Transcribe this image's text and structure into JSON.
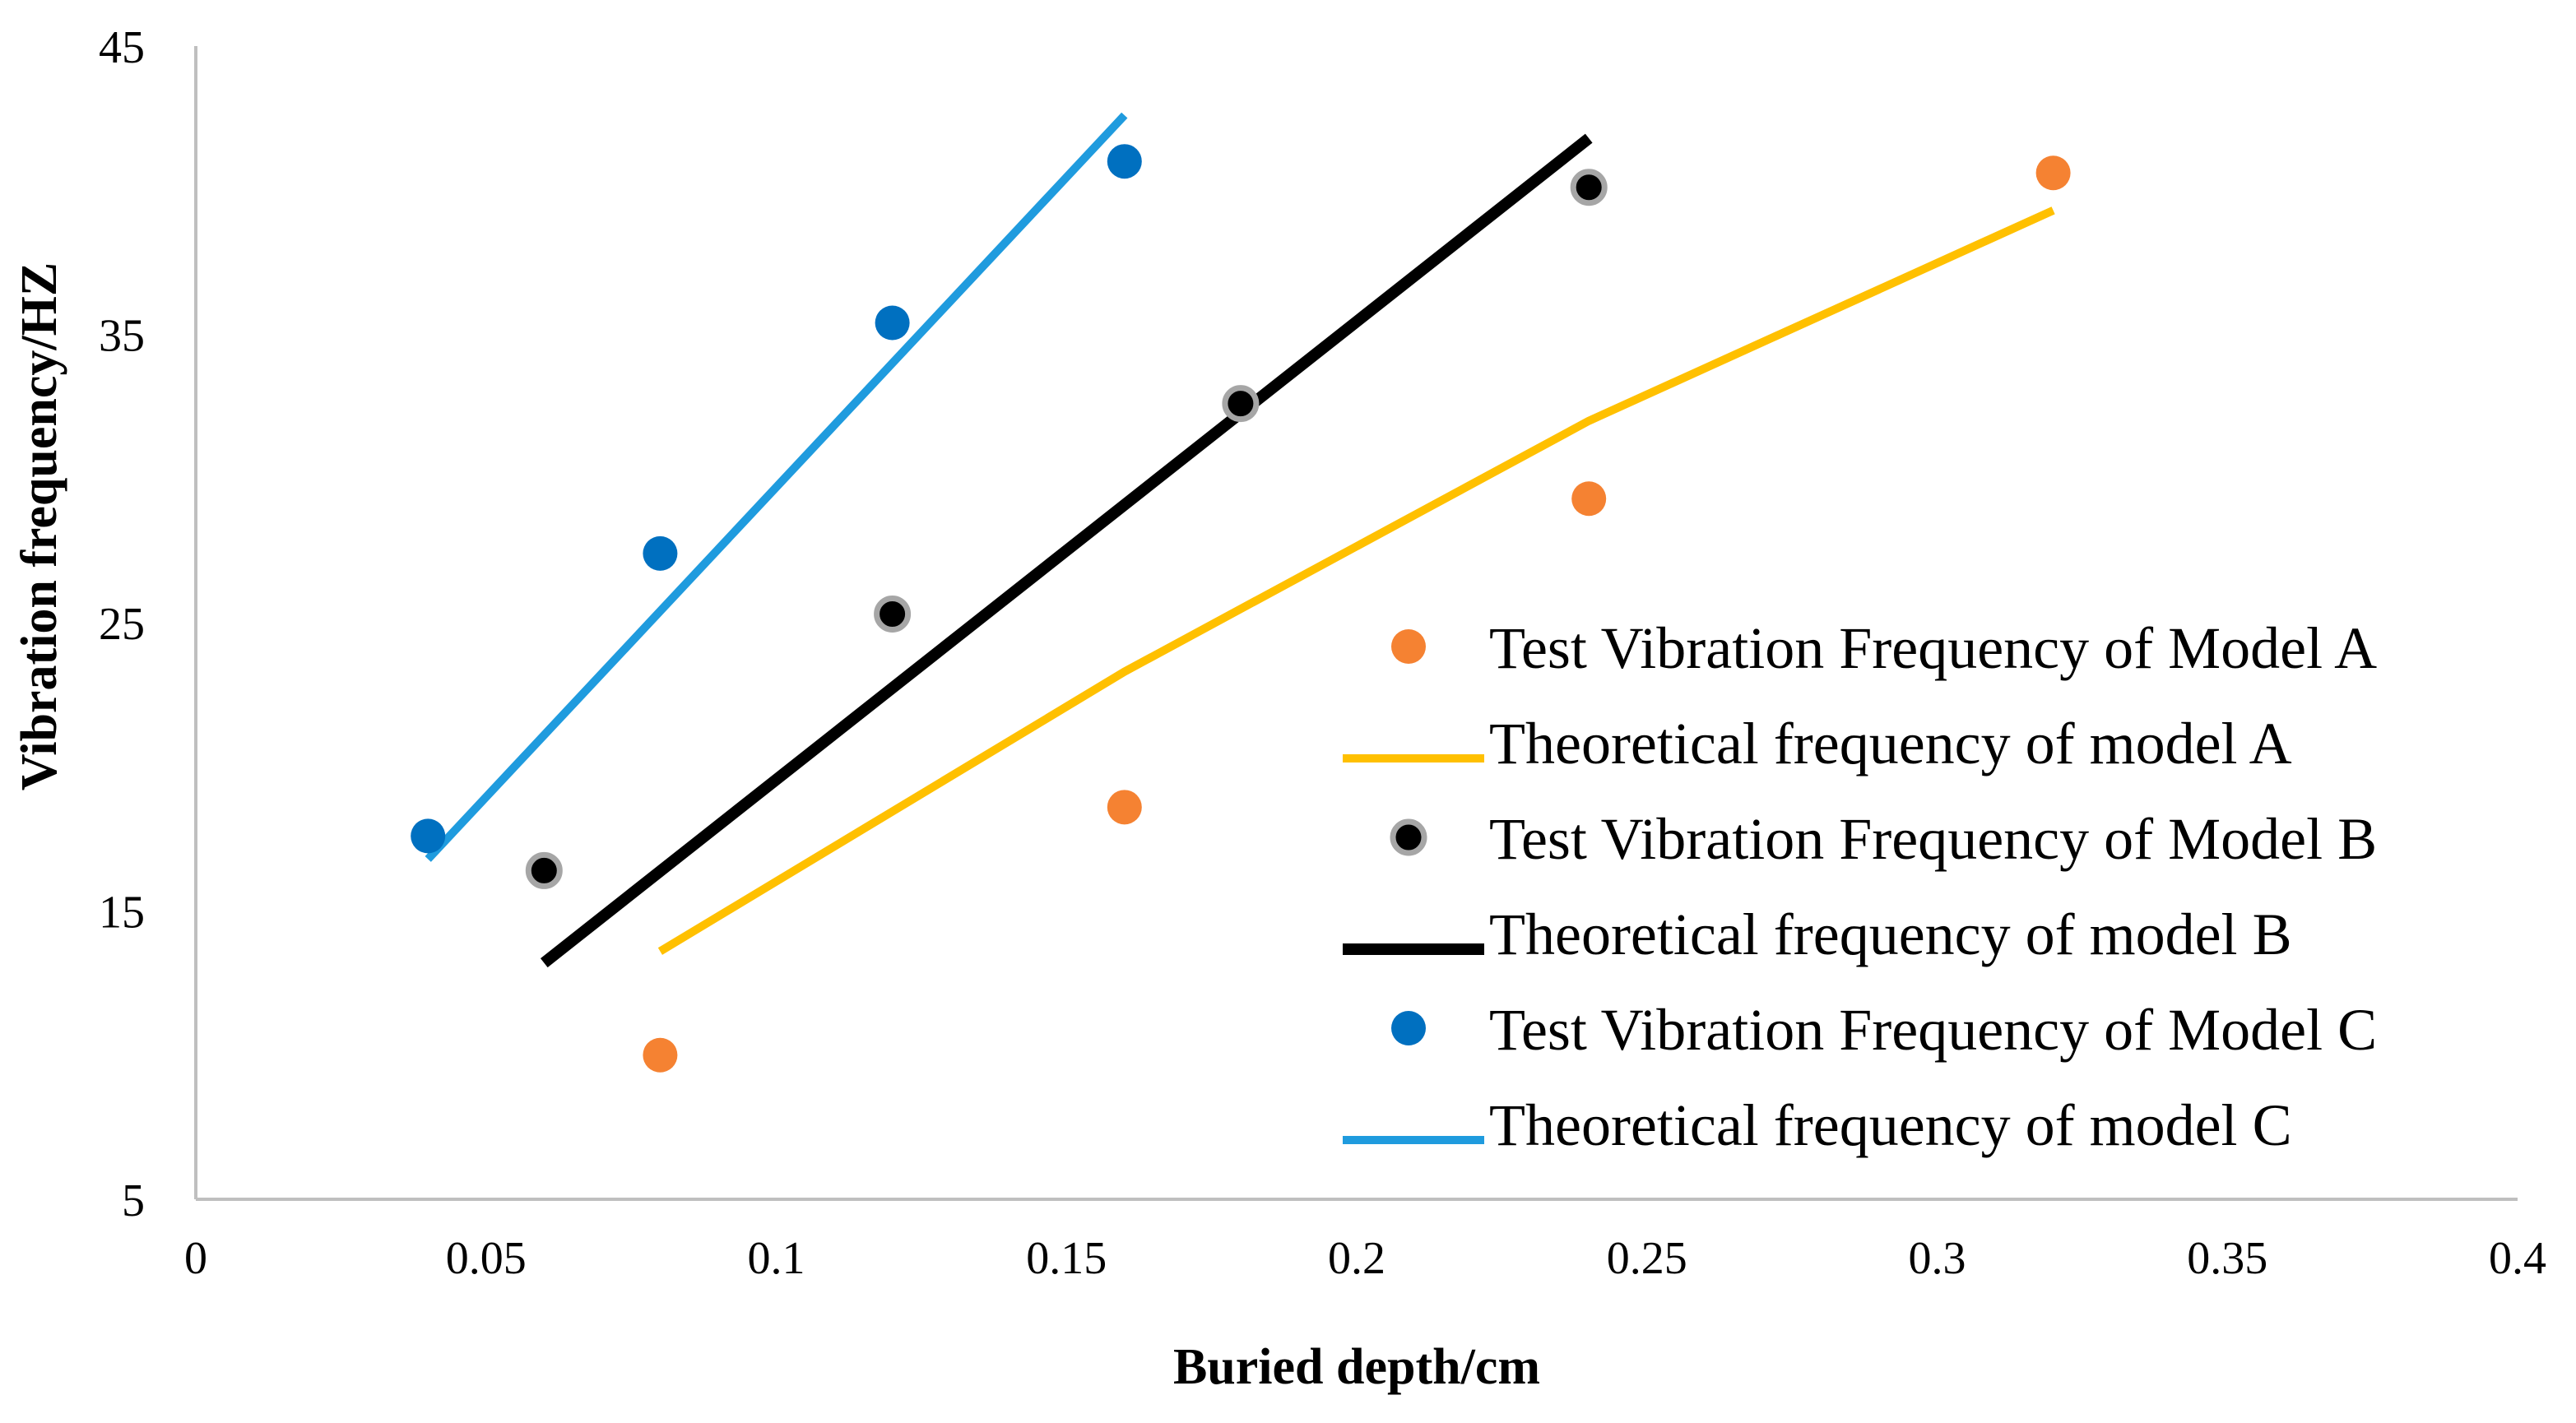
{
  "chart_data": {
    "type": "scatter",
    "title": "",
    "xlabel": "Buried depth/cm",
    "ylabel": "Vibration frequency/HZ",
    "xlim": [
      0,
      0.4
    ],
    "ylim": [
      5,
      45
    ],
    "x_ticks": [
      0,
      0.05,
      0.1,
      0.15,
      0.2,
      0.25,
      0.3,
      0.35,
      0.4
    ],
    "x_tick_labels": [
      "0",
      "0.05",
      "0.1",
      "0.15",
      "0.2",
      "0.25",
      "0.3",
      "0.35",
      "0.4"
    ],
    "y_ticks": [
      5,
      15,
      25,
      35,
      45
    ],
    "y_tick_labels": [
      "5",
      "15",
      "25",
      "35",
      "45"
    ],
    "grid": false,
    "legend_position": "right",
    "series": [
      {
        "name": "Test Vibration Frequency of Model A",
        "kind": "scatter",
        "color": "#F58232",
        "x": [
          0.08,
          0.16,
          0.24,
          0.32
        ],
        "y": [
          10.0,
          18.6,
          29.3,
          40.6
        ]
      },
      {
        "name": "Theoretical frequency of model A",
        "kind": "line",
        "color": "#FFC000",
        "x": [
          0.08,
          0.16,
          0.24,
          0.32
        ],
        "y": [
          13.6,
          23.3,
          32.0,
          39.3
        ]
      },
      {
        "name": "Test Vibration Frequency of Model B",
        "kind": "scatter",
        "color": "#000000",
        "edge_color": "#A6A6A6",
        "x": [
          0.06,
          0.12,
          0.18,
          0.24
        ],
        "y": [
          16.4,
          25.3,
          32.6,
          40.1
        ]
      },
      {
        "name": "Theoretical frequency of model B",
        "kind": "line",
        "color": "#000000",
        "x": [
          0.06,
          0.24
        ],
        "y": [
          13.2,
          41.8
        ]
      },
      {
        "name": "Test Vibration Frequency of Model C",
        "kind": "scatter",
        "color": "#0070C0",
        "x": [
          0.04,
          0.08,
          0.12,
          0.16
        ],
        "y": [
          17.6,
          27.4,
          35.4,
          41.0
        ]
      },
      {
        "name": "Theoretical frequency of model C",
        "kind": "line",
        "color": "#1F9BDE",
        "x": [
          0.04,
          0.16
        ],
        "y": [
          16.8,
          42.6
        ]
      }
    ]
  }
}
